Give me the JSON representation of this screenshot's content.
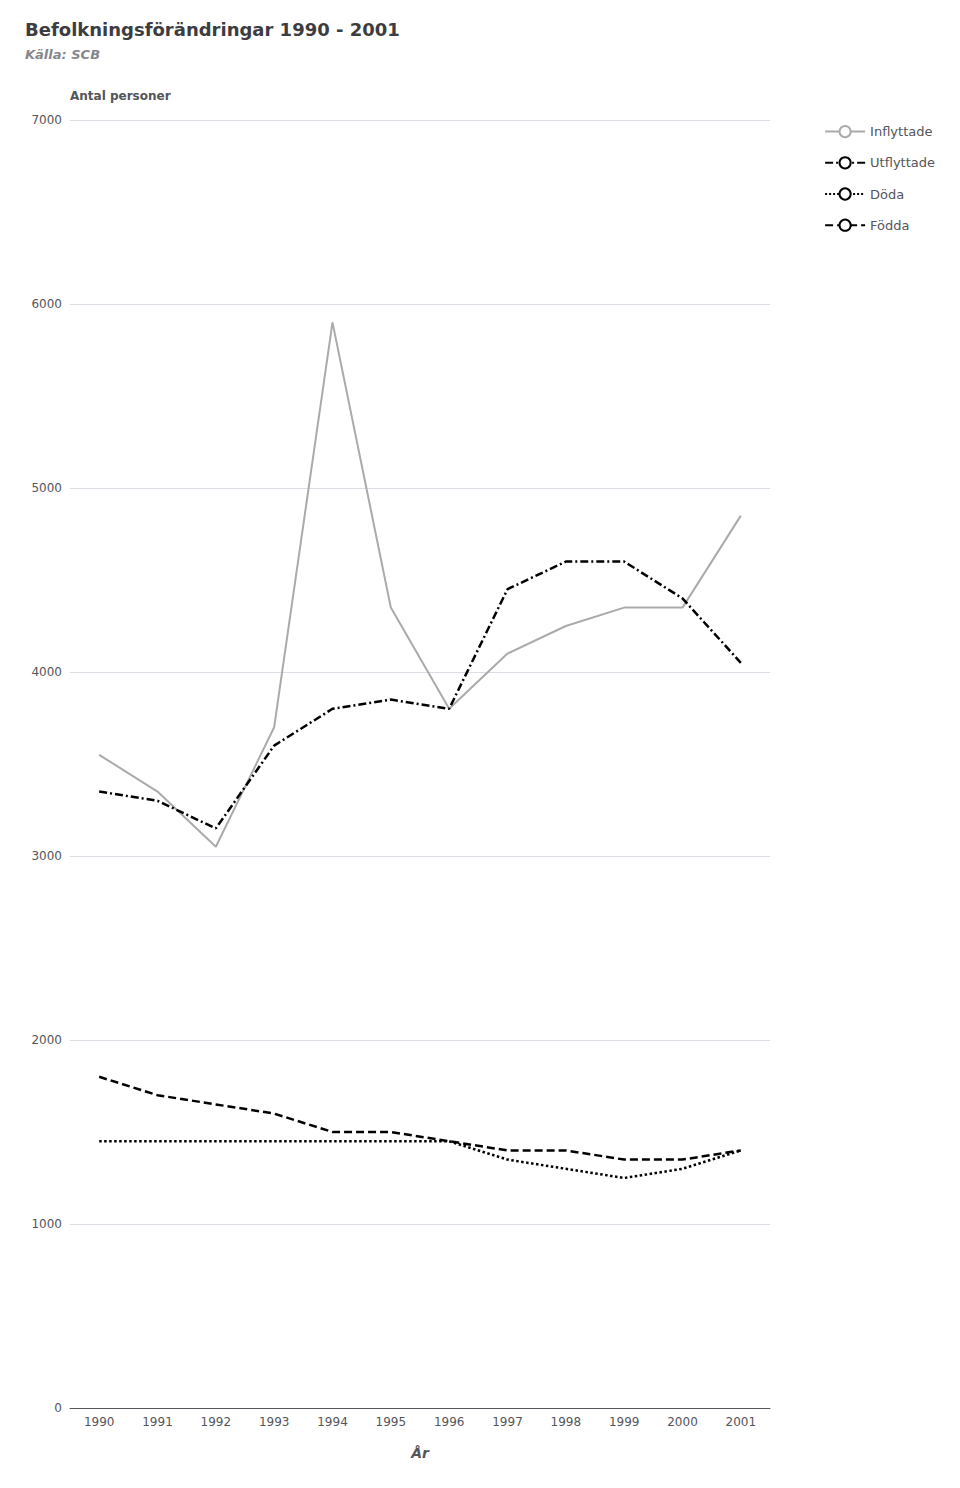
{
  "chart_data": {
    "type": "line",
    "title": "Befolkningsförändringar 1990 - 2001",
    "subtitle": "Källa: SCB",
    "xlabel": "År",
    "ylabel": "Antal personer",
    "categories": [
      "1990",
      "1991",
      "1992",
      "1993",
      "1994",
      "1995",
      "1996",
      "1997",
      "1998",
      "1999",
      "2000",
      "2001"
    ],
    "series": [
      {
        "name": "Inflyttade",
        "color": "#aaaaaa",
        "line_style": "solid",
        "values": [
          3550,
          3350,
          3050,
          3700,
          5900,
          4350,
          3800,
          4100,
          4250,
          4350,
          4350,
          4850
        ]
      },
      {
        "name": "Utflyttade",
        "color": "#000000",
        "line_style": "dashdot",
        "values": [
          3350,
          3300,
          3150,
          3600,
          3800,
          3850,
          3800,
          4450,
          4600,
          4600,
          4400,
          4050
        ]
      },
      {
        "name": "Döda",
        "color": "#000000",
        "line_style": "dotted",
        "values": [
          1450,
          1450,
          1450,
          1450,
          1450,
          1450,
          1450,
          1350,
          1300,
          1250,
          1300,
          1400
        ]
      },
      {
        "name": "Födda",
        "color": "#000000",
        "line_style": "dashed",
        "values": [
          1800,
          1700,
          1650,
          1600,
          1500,
          1500,
          1450,
          1400,
          1400,
          1350,
          1350,
          1400
        ]
      }
    ],
    "ylim": [
      0,
      7000
    ],
    "yticks": [
      0,
      1000,
      2000,
      3000,
      4000,
      5000,
      6000,
      7000
    ],
    "grid": true,
    "legend": "right"
  }
}
